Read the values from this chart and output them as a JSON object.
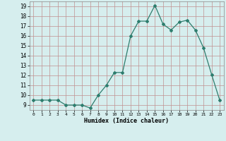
{
  "x": [
    0,
    1,
    2,
    3,
    4,
    5,
    6,
    7,
    8,
    9,
    10,
    11,
    12,
    13,
    14,
    15,
    16,
    17,
    18,
    19,
    20,
    21,
    22,
    23
  ],
  "y": [
    9.5,
    9.5,
    9.5,
    9.5,
    9.0,
    9.0,
    9.0,
    8.7,
    10.0,
    11.0,
    12.3,
    12.3,
    16.0,
    17.5,
    17.5,
    19.1,
    17.2,
    16.6,
    17.4,
    17.6,
    16.6,
    14.8,
    12.1,
    9.5
  ],
  "line_color": "#2e7d6e",
  "marker": "D",
  "marker_size": 2.0,
  "bg_color": "#d6eeee",
  "grid_color": "#c09090",
  "xlabel": "Humidex (Indice chaleur)",
  "xlim": [
    -0.5,
    23.5
  ],
  "ylim": [
    8.5,
    19.5
  ],
  "yticks": [
    9,
    10,
    11,
    12,
    13,
    14,
    15,
    16,
    17,
    18,
    19
  ],
  "xticks": [
    0,
    1,
    2,
    3,
    4,
    5,
    6,
    7,
    8,
    9,
    10,
    11,
    12,
    13,
    14,
    15,
    16,
    17,
    18,
    19,
    20,
    21,
    22,
    23
  ]
}
